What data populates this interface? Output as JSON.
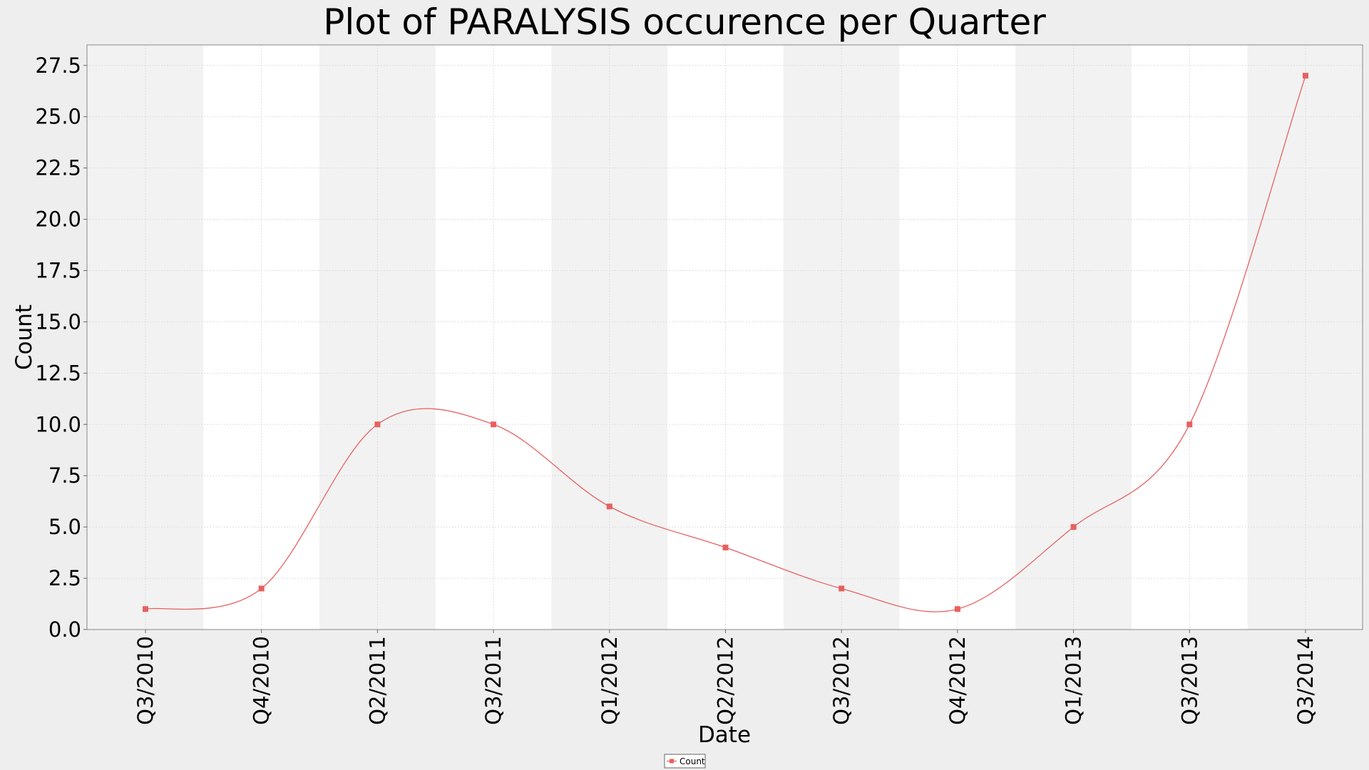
{
  "chart_data": {
    "type": "line",
    "title": "Plot of PARALYSIS occurence per Quarter",
    "xlabel": "Date",
    "ylabel": "Count",
    "ylim": [
      0,
      28.5
    ],
    "yticks": [
      "0.0",
      "2.5",
      "5.0",
      "7.5",
      "10.0",
      "12.5",
      "15.0",
      "17.5",
      "20.0",
      "22.5",
      "25.0",
      "27.5"
    ],
    "categories": [
      "Q3/2010",
      "Q4/2010",
      "Q2/2011",
      "Q3/2011",
      "Q1/2012",
      "Q2/2012",
      "Q3/2012",
      "Q4/2012",
      "Q1/2013",
      "Q3/2013",
      "Q3/2014"
    ],
    "series": [
      {
        "name": "Count",
        "values": [
          1,
          2,
          10,
          10,
          6,
          4,
          2,
          1,
          5,
          10,
          27
        ]
      }
    ],
    "grid": true,
    "legend_position": "bottom-center",
    "colors": {
      "series": "#e86060",
      "band_dark": "#f2f2f2",
      "band_light": "#ffffff",
      "grid": "#dddddd",
      "background": "#eeeeee"
    }
  }
}
